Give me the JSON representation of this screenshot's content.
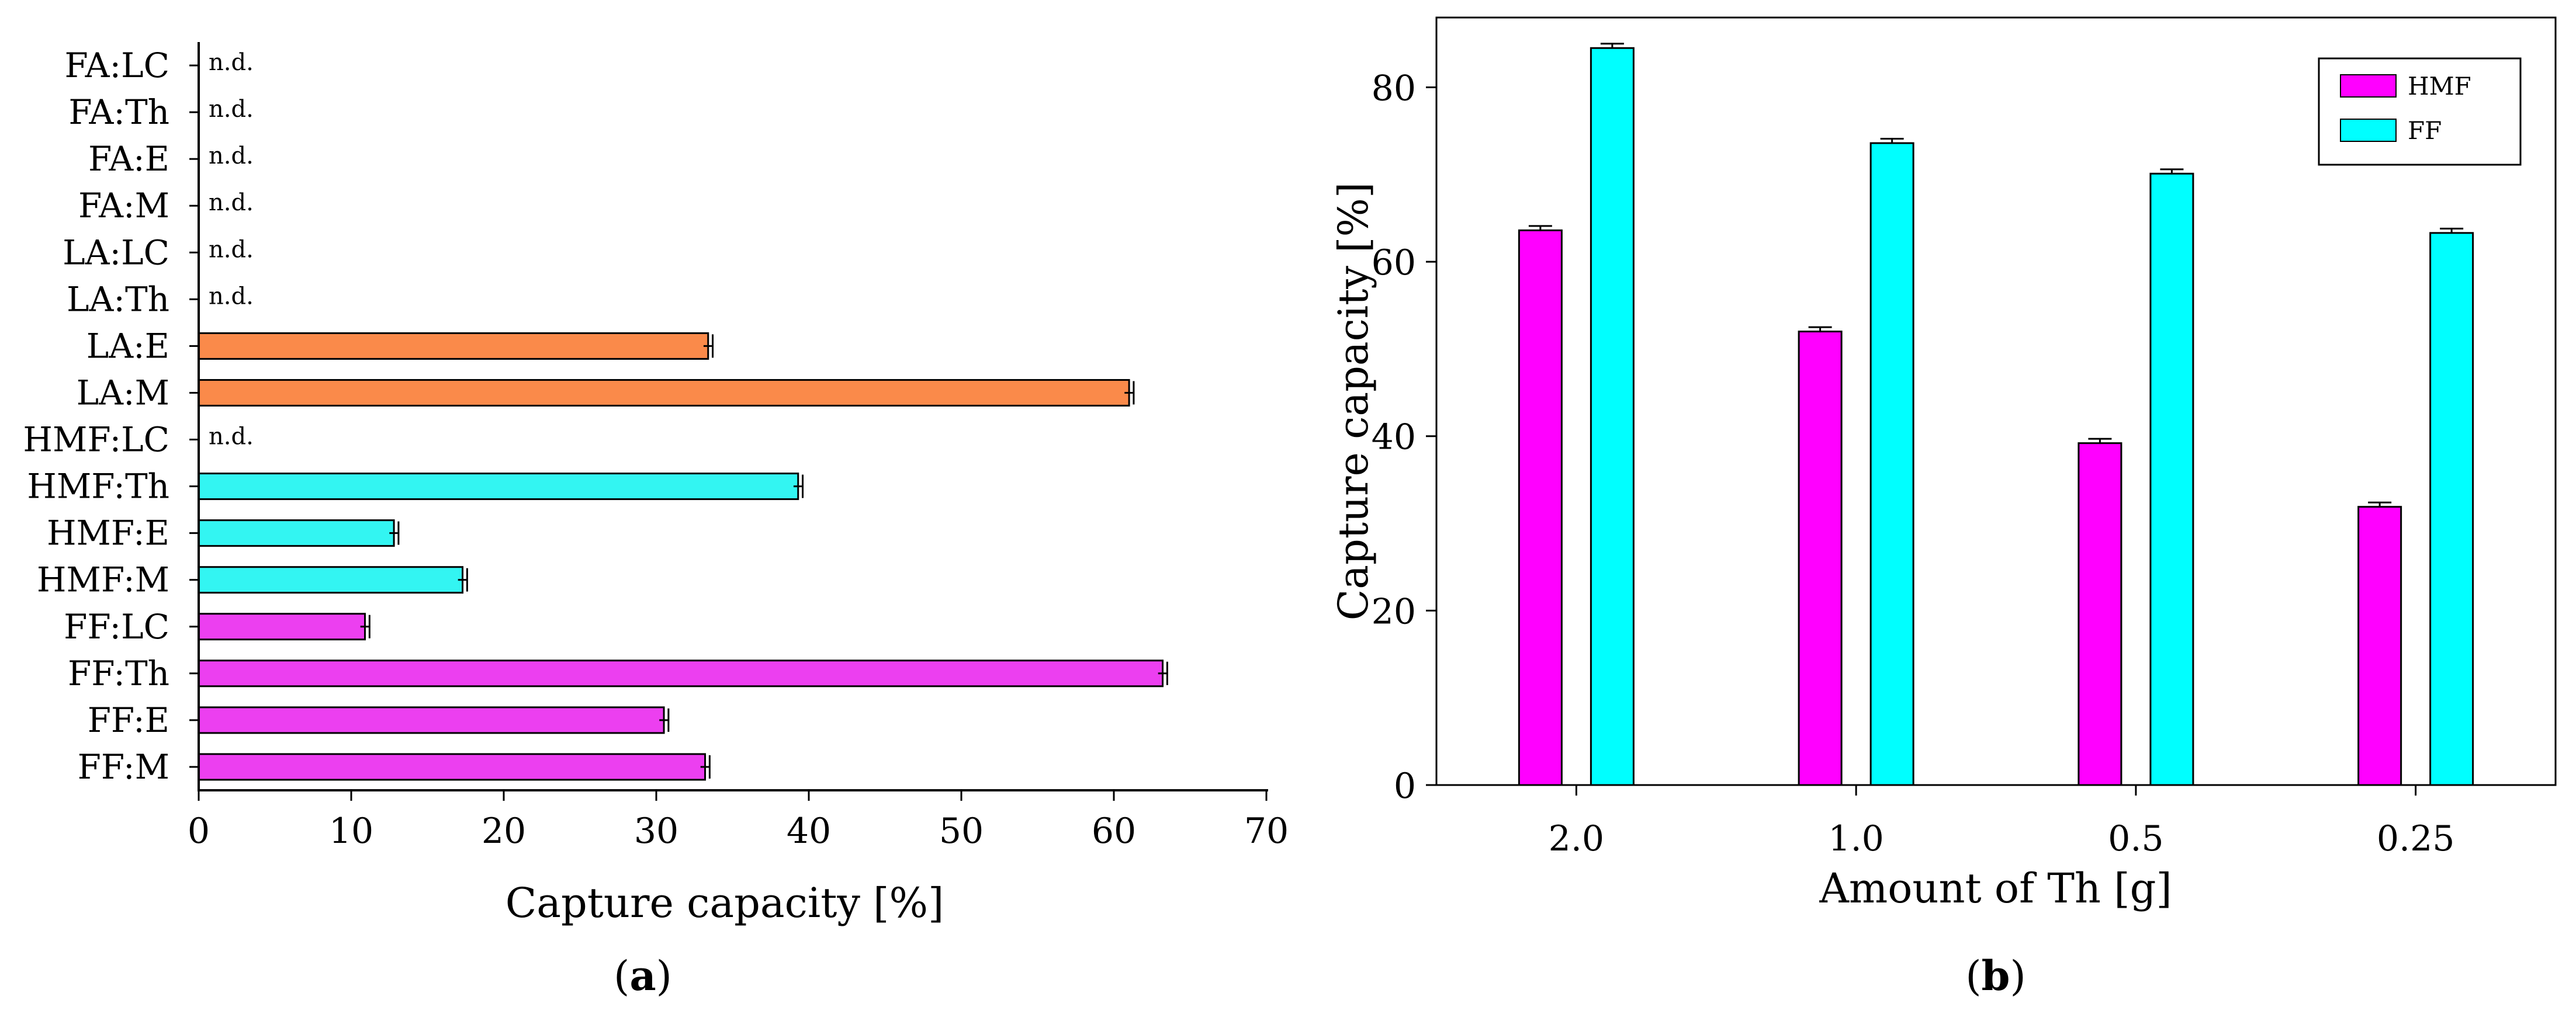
{
  "figure_labels": {
    "a": "a",
    "b": "b"
  },
  "chart_data": [
    {
      "panel": "a",
      "type": "bar",
      "orientation": "horizontal",
      "categories": [
        "FA:LC",
        "FA:Th",
        "FA:E",
        "FA:M",
        "LA:LC",
        "LA:Th",
        "LA:E",
        "LA:M",
        "HMF:LC",
        "HMF:Th",
        "HMF:E",
        "HMF:M",
        "FF:LC",
        "FF:Th",
        "FF:E",
        "FF:M"
      ],
      "values": [
        null,
        null,
        null,
        null,
        null,
        null,
        33.4,
        61.0,
        null,
        39.3,
        12.8,
        17.3,
        10.9,
        63.2,
        30.5,
        33.2
      ],
      "errors": [
        0,
        0,
        0,
        0,
        0,
        0,
        0.3,
        0.3,
        0,
        0.3,
        0.3,
        0.3,
        0.3,
        0.3,
        0.3,
        0.3
      ],
      "colors": [
        "#fa8a4a",
        "#fa8a4a",
        "#fa8a4a",
        "#fa8a4a",
        "#fa8a4a",
        "#fa8a4a",
        "#fa8a4a",
        "#fa8a4a",
        "#33f5f2",
        "#33f5f2",
        "#33f5f2",
        "#33f5f2",
        "#ec3ff0",
        "#ec3ff0",
        "#ec3ff0",
        "#ec3ff0"
      ],
      "nd_label": "n.d.",
      "xlabel": "Capture capacity [%]",
      "xlim": [
        0,
        70
      ],
      "xticks": [
        0,
        10,
        20,
        30,
        40,
        50,
        60,
        70
      ],
      "grid": false
    },
    {
      "panel": "b",
      "type": "bar",
      "categories": [
        "2.0",
        "1.0",
        "0.5",
        "0.25"
      ],
      "series": [
        {
          "name": "HMF",
          "color": "#ff00ff",
          "values": [
            63.6,
            52.0,
            39.2,
            31.9
          ],
          "errors": [
            0.5,
            0.5,
            0.5,
            0.5
          ]
        },
        {
          "name": "FF",
          "color": "#00ffff",
          "values": [
            84.5,
            73.6,
            70.1,
            63.3
          ],
          "errors": [
            0.5,
            0.5,
            0.5,
            0.5
          ]
        }
      ],
      "xlabel": "Amount of Th [g]",
      "ylabel": "Capture capacity [%]",
      "ylim": [
        0,
        88
      ],
      "yticks": [
        0,
        20,
        40,
        60,
        80
      ],
      "legend_position": "top-right",
      "grid": false
    }
  ]
}
